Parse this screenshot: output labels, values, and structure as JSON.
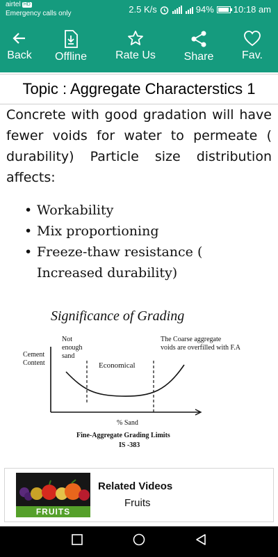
{
  "status_bar": {
    "carrier": "airtel",
    "carrier_badge": "HD",
    "emergency": "Emergency calls only",
    "speed": "2.5 K/s",
    "battery": "94%",
    "battery_level": 0.94,
    "time": "10:18 am"
  },
  "toolbar": {
    "back": "Back",
    "offline": "Offline",
    "rate": "Rate Us",
    "share": "Share",
    "fav": "Fav."
  },
  "topic": "Topic : Aggregate Characterstics 1",
  "paragraph": "Concrete with good gradation will have fewer voids for water to permeate ( durability) Particle size distribution affects:",
  "bullets": [
    "Workability",
    "Mix proportioning",
    "Freeze-thaw resistance (  Increased durability)"
  ],
  "figure": {
    "title": "Significance of Grading",
    "ylabel_line1": "Cement",
    "ylabel_line2": "Content",
    "left_note_1": "Not",
    "left_note_2": "enough",
    "left_note_3": "sand",
    "middle_note": "Economical",
    "right_note_1": "The Coarse aggregate",
    "right_note_2": "voids are overfilled with F.A",
    "xlabel": "% Sand",
    "caption_1": "Fine-Aggregate Grading Limits",
    "caption_2": "IS -383"
  },
  "related": {
    "title": "Related Videos",
    "subtitle": "Fruits",
    "thumb_label": "FRUITS"
  },
  "colors": {
    "accent": "#159b7e"
  },
  "icons": {
    "back": "arrow-left-icon",
    "offline": "download-doc-icon",
    "rate": "star-icon",
    "share": "share-icon",
    "fav": "heart-icon",
    "nav_recent": "square-icon",
    "nav_home": "circle-icon",
    "nav_back": "triangle-icon"
  }
}
